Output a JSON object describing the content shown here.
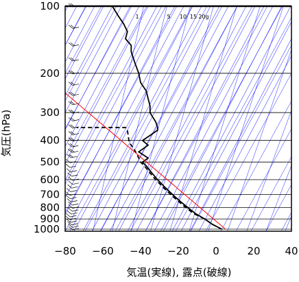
{
  "chart_data": {
    "type": "line",
    "title": "",
    "xlabel": "気温(実線), 露点(破線)",
    "ylabel": "気圧(hPa)",
    "xlim": [
      -80,
      40
    ],
    "ylim": [
      1050,
      100
    ],
    "y_scale": "log",
    "x_ticks": [
      -80,
      -60,
      -40,
      -20,
      0,
      20,
      40
    ],
    "x_tick_labels": [
      "−80",
      "−60",
      "−40",
      "−20",
      "0",
      "20",
      "40"
    ],
    "y_ticks": [
      100,
      200,
      300,
      400,
      500,
      600,
      700,
      800,
      900,
      1000
    ],
    "y_tick_labels": [
      "100",
      "200",
      "300",
      "400",
      "500",
      "600",
      "700",
      "800",
      "900",
      "1000"
    ],
    "mixing_ratio_labels": [
      "1",
      "5",
      "10",
      "15",
      "20g"
    ],
    "grid": true,
    "colors": {
      "isobar": "#000000",
      "auxiliary": "#0000ff",
      "temperature": "#000000",
      "dewpoint": "#000000",
      "reference": "#ff0000"
    },
    "series": [
      {
        "key": "temperature",
        "style": "solid",
        "points": [
          [
            3,
            1000
          ],
          [
            -2,
            950
          ],
          [
            -6,
            900
          ],
          [
            -11,
            850
          ],
          [
            -15,
            800
          ],
          [
            -19,
            750
          ],
          [
            -23,
            700
          ],
          [
            -27,
            650
          ],
          [
            -31,
            600
          ],
          [
            -34,
            560
          ],
          [
            -37,
            520
          ],
          [
            -39,
            500
          ],
          [
            -36,
            480
          ],
          [
            -41,
            450
          ],
          [
            -36,
            420
          ],
          [
            -39,
            400
          ],
          [
            -35,
            380
          ],
          [
            -31,
            360
          ],
          [
            -31,
            350
          ],
          [
            -32,
            330
          ],
          [
            -34,
            310
          ],
          [
            -35,
            300
          ],
          [
            -35,
            280
          ],
          [
            -36,
            260
          ],
          [
            -37,
            240
          ],
          [
            -40,
            220
          ],
          [
            -41,
            200
          ],
          [
            -43,
            180
          ],
          [
            -45,
            160
          ],
          [
            -45,
            150
          ],
          [
            -48,
            140
          ],
          [
            -47,
            130
          ],
          [
            -49,
            120
          ],
          [
            -52,
            110
          ],
          [
            -55,
            100
          ]
        ]
      },
      {
        "key": "dewpoint",
        "style": "dashed",
        "points": [
          [
            3,
            1000
          ],
          [
            -2,
            950
          ],
          [
            -6,
            900
          ],
          [
            -12,
            850
          ],
          [
            -16,
            800
          ],
          [
            -20,
            750
          ],
          [
            -24,
            700
          ],
          [
            -28,
            650
          ],
          [
            -32,
            600
          ],
          [
            -35,
            560
          ],
          [
            -38,
            520
          ],
          [
            -40,
            500
          ],
          [
            -42,
            460
          ],
          [
            -44,
            430
          ],
          [
            -46,
            410
          ],
          [
            -47,
            360
          ],
          [
            -48,
            350
          ],
          [
            -74,
            350
          ]
        ]
      },
      {
        "key": "reference",
        "style": "solid",
        "points": [
          [
            5,
            1000
          ],
          [
            -80,
            245
          ]
        ]
      }
    ],
    "wind_barbs_present": true
  }
}
